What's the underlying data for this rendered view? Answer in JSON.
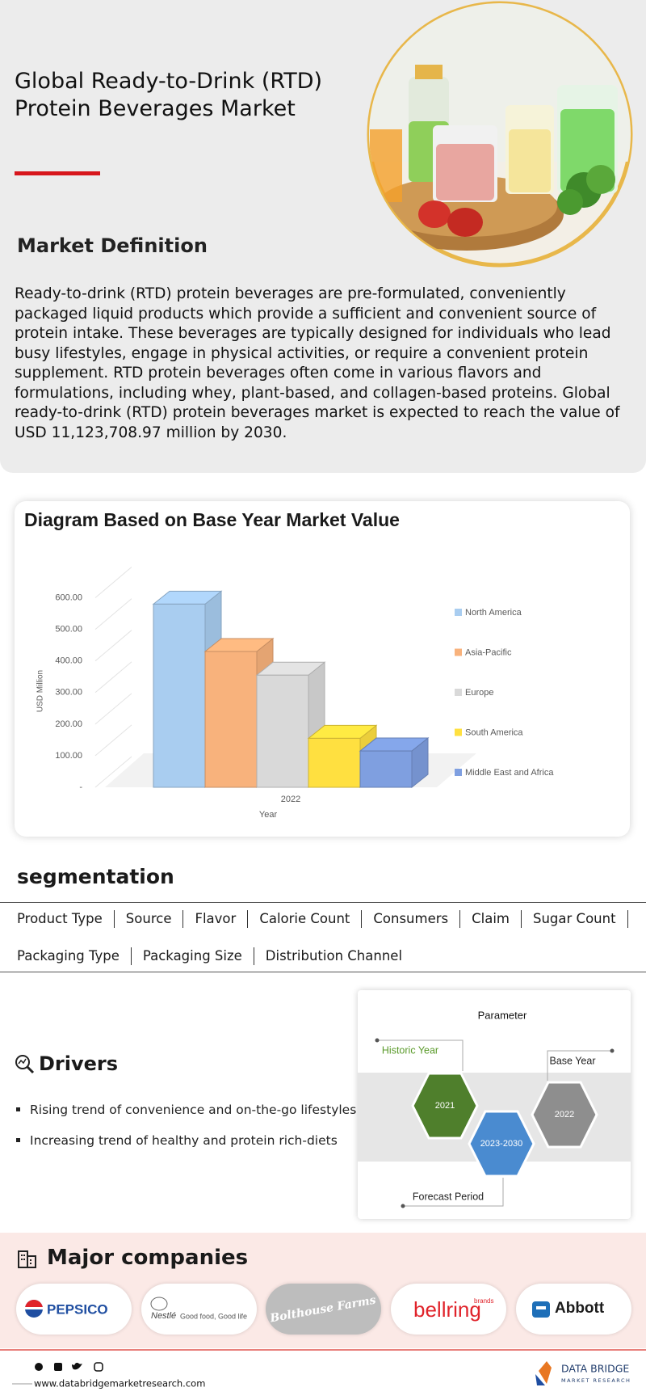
{
  "header": {
    "title": "Global Ready-to-Drink (RTD) Protein Beverages Market"
  },
  "definition": {
    "heading": "Market Definition",
    "text": "Ready-to-drink (RTD) protein beverages are pre-formulated, conveniently packaged liquid products which provide a sufficient and convenient source of protein intake. These beverages are typically designed for individuals who lead busy lifestyles, engage in physical activities, or require a convenient protein supplement. RTD protein beverages often come in various flavors and formulations, including whey, plant-based, and collagen-based proteins. Global ready-to-drink (RTD) protein beverages market is expected to reach the value of USD 11,123,708.97 million by 2030."
  },
  "chart_data": {
    "type": "bar3d",
    "title": "Diagram Based on Base Year Market Value",
    "x_label": "Year",
    "y_label": "USD Million",
    "categories": [
      "2022"
    ],
    "series": [
      {
        "name": "North America",
        "color": "#a9cdf0",
        "values": [
          580
        ]
      },
      {
        "name": "Asia-Pacific",
        "color": "#f8b27c",
        "values": [
          430
        ]
      },
      {
        "name": "Europe",
        "color": "#d9d9d9",
        "values": [
          355
        ]
      },
      {
        "name": "South America",
        "color": "#ffe040",
        "values": [
          155
        ]
      },
      {
        "name": "Middle East and Africa",
        "color": "#7f9fe0",
        "values": [
          115
        ]
      }
    ],
    "ylim": [
      0,
      650
    ],
    "yticks": [
      {
        "value": 0,
        "label": "-"
      },
      {
        "value": 100,
        "label": "100.00"
      },
      {
        "value": 200,
        "label": "200.00"
      },
      {
        "value": 300,
        "label": "300.00"
      },
      {
        "value": 400,
        "label": "400.00"
      },
      {
        "value": 500,
        "label": "500.00"
      },
      {
        "value": 600,
        "label": "600.00"
      }
    ],
    "grid": true,
    "legend": "right"
  },
  "segmentation": {
    "heading": "segmentation",
    "items": [
      "Product Type",
      "Source",
      "Flavor",
      "Calorie Count",
      "Consumers",
      "Claim",
      "Sugar Count",
      "Packaging Type",
      "Packaging Size",
      "Distribution Channel"
    ]
  },
  "drivers": {
    "heading": "Drivers",
    "items": [
      "Rising trend of convenience and on-the-go lifestyles",
      "Increasing trend of healthy and protein rich-diets"
    ]
  },
  "parameter": {
    "title": "Parameter",
    "historic_label": "Historic Year",
    "base_label": "Base Year",
    "forecast_label": "Forecast Period",
    "historic_year": "2021",
    "base_year": "2022",
    "forecast_years": "2023-2030"
  },
  "companies": {
    "heading": "Major companies",
    "logos": [
      "PEPSICO",
      "Nestlé",
      "Good food, Good life",
      "Bolthouse Farms",
      "bellring",
      "brands",
      "Abbott"
    ]
  },
  "footer": {
    "url": "www.databridgemarketresearch.com",
    "brand": "DATA BRIDGE",
    "brand_sub": "MARKET RESEARCH"
  }
}
